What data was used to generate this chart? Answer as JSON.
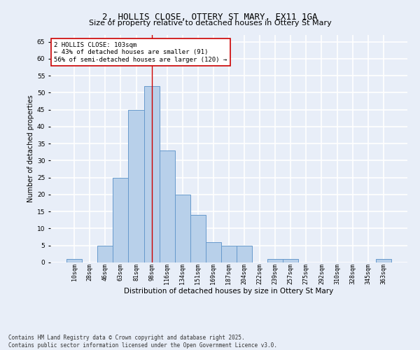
{
  "title1": "2, HOLLIS CLOSE, OTTERY ST MARY, EX11 1GA",
  "title2": "Size of property relative to detached houses in Ottery St Mary",
  "xlabel": "Distribution of detached houses by size in Ottery St Mary",
  "ylabel": "Number of detached properties",
  "categories": [
    "10sqm",
    "28sqm",
    "46sqm",
    "63sqm",
    "81sqm",
    "98sqm",
    "116sqm",
    "134sqm",
    "151sqm",
    "169sqm",
    "187sqm",
    "204sqm",
    "222sqm",
    "239sqm",
    "257sqm",
    "275sqm",
    "292sqm",
    "310sqm",
    "328sqm",
    "345sqm",
    "363sqm"
  ],
  "values": [
    1,
    0,
    5,
    25,
    45,
    52,
    33,
    20,
    14,
    6,
    5,
    5,
    0,
    1,
    1,
    0,
    0,
    0,
    0,
    0,
    1
  ],
  "bar_color": "#b8d0ea",
  "bar_edge_color": "#6699cc",
  "vline_x_idx": 5,
  "vline_color": "#cc0000",
  "annotation_text": "2 HOLLIS CLOSE: 103sqm\n← 43% of detached houses are smaller (91)\n56% of semi-detached houses are larger (120) →",
  "annotation_box_color": "white",
  "annotation_box_edge": "#cc0000",
  "ylim": [
    0,
    67
  ],
  "yticks": [
    0,
    5,
    10,
    15,
    20,
    25,
    30,
    35,
    40,
    45,
    50,
    55,
    60,
    65
  ],
  "footnote1": "Contains HM Land Registry data © Crown copyright and database right 2025.",
  "footnote2": "Contains public sector information licensed under the Open Government Licence v3.0.",
  "bg_color": "#e8eef8",
  "grid_color": "white",
  "title_fontsize": 9,
  "subtitle_fontsize": 8,
  "tick_fontsize": 6,
  "ylabel_fontsize": 7,
  "xlabel_fontsize": 7.5,
  "annot_fontsize": 6.5,
  "footnote_fontsize": 5.5
}
